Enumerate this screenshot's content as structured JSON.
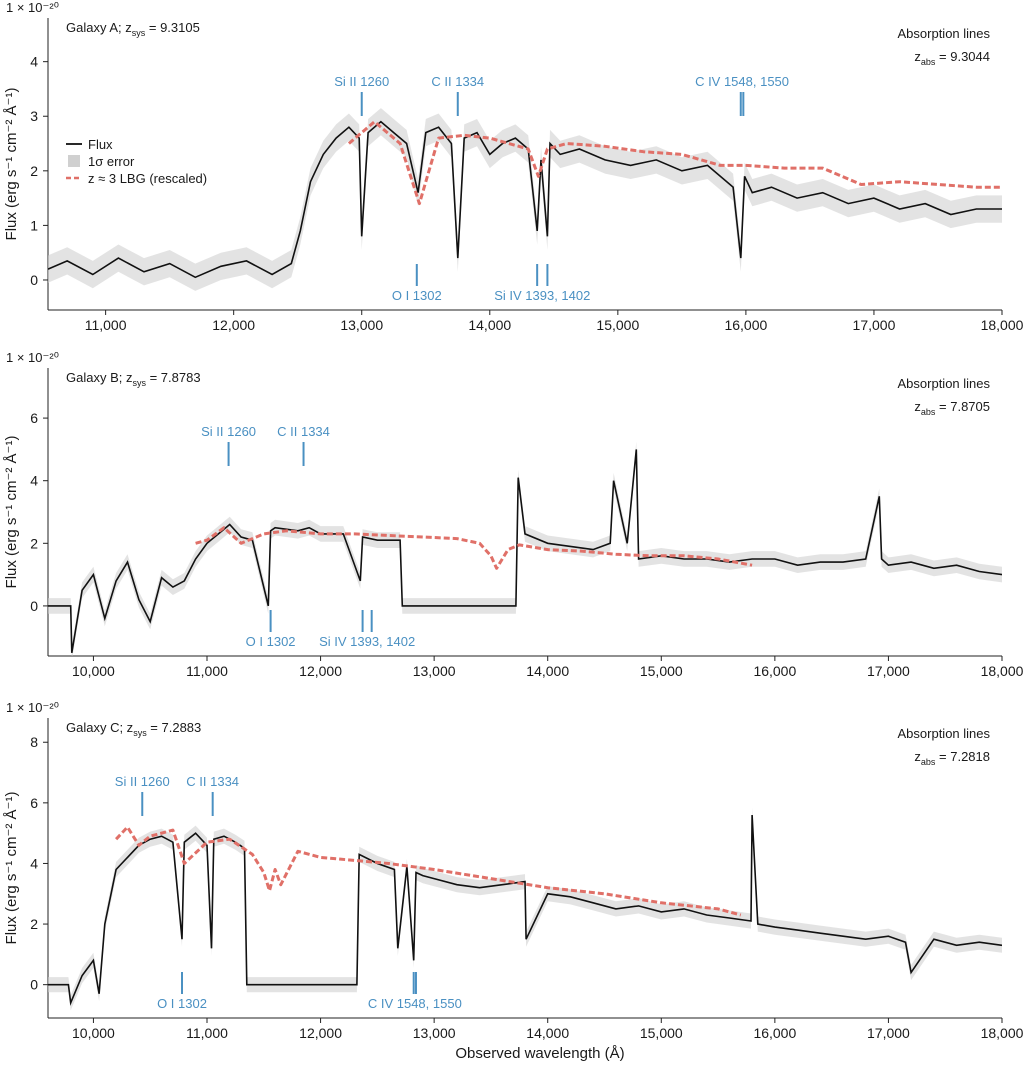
{
  "x_axis_label": "Observed wavelength (Å)",
  "y_axis_label": "Flux (erg s⁻¹ cm⁻² Å⁻¹)",
  "scale_label": "1 × 10⁻²⁰",
  "legend": {
    "flux": "Flux",
    "error": "1σ error",
    "template": "z ≈ 3 LBG (rescaled)"
  },
  "colors": {
    "flux": "#111111",
    "error": "#d0d0d0",
    "template": "#e07068",
    "lines": "#4a90c2"
  },
  "chart_data": [
    {
      "type": "line",
      "galaxy_label": "Galaxy A; z",
      "zsys_sub": "sys",
      "zsys_value": "= 9.3105",
      "abs_title": "Absorption lines",
      "zabs_sub": "abs",
      "zabs_value": "= 9.3044",
      "xlim": [
        10550,
        18000
      ],
      "ylim": [
        -0.55,
        4.8
      ],
      "x_ticks": [
        11000,
        12000,
        13000,
        14000,
        15000,
        16000,
        17000,
        18000
      ],
      "x_tick_labels": [
        "11,000",
        "12,000",
        "13,000",
        "14,000",
        "15,000",
        "16,000",
        "17,000",
        "18,000"
      ],
      "y_ticks": [
        0,
        1,
        2,
        3,
        4
      ],
      "y_tick_labels": [
        "0",
        "1",
        "2",
        "3",
        "4"
      ],
      "legend_shown": true,
      "series": [
        {
          "name": "Flux",
          "style": "solid",
          "x": [
            10550,
            10700,
            10900,
            11100,
            11300,
            11500,
            11700,
            11900,
            12100,
            12300,
            12450,
            12520,
            12600,
            12700,
            12800,
            12900,
            12980,
            13000,
            13050,
            13150,
            13250,
            13350,
            13420,
            13440,
            13500,
            13600,
            13700,
            13750,
            13800,
            13900,
            14000,
            14100,
            14200,
            14300,
            14370,
            14400,
            14450,
            14470,
            14550,
            14700,
            14900,
            15100,
            15300,
            15500,
            15700,
            15900,
            15960,
            15990,
            16050,
            16200,
            16400,
            16600,
            16800,
            17000,
            17200,
            17400,
            17600,
            17800,
            18000
          ],
          "y": [
            0.2,
            0.35,
            0.1,
            0.4,
            0.15,
            0.3,
            0.05,
            0.25,
            0.35,
            0.1,
            0.3,
            0.9,
            1.8,
            2.3,
            2.6,
            2.8,
            2.6,
            0.8,
            2.7,
            2.9,
            2.7,
            2.5,
            1.8,
            1.6,
            2.7,
            2.8,
            2.5,
            0.4,
            2.6,
            2.7,
            2.3,
            2.5,
            2.6,
            2.4,
            0.9,
            2.2,
            0.8,
            2.5,
            2.3,
            2.4,
            2.2,
            2.1,
            2.2,
            2.0,
            2.1,
            1.7,
            0.4,
            1.9,
            1.6,
            1.7,
            1.5,
            1.6,
            1.4,
            1.5,
            1.3,
            1.4,
            1.2,
            1.3,
            1.3
          ]
        },
        {
          "name": "z ≈ 3 LBG (rescaled)",
          "style": "dashed",
          "x": [
            12900,
            13100,
            13300,
            13450,
            13600,
            13800,
            14000,
            14300,
            14380,
            14450,
            14600,
            14900,
            15200,
            15500,
            15800,
            16000,
            16300,
            16600,
            16900,
            17200,
            17500,
            17800,
            18000
          ],
          "y": [
            2.5,
            2.9,
            2.5,
            1.4,
            2.6,
            2.65,
            2.6,
            2.4,
            1.9,
            2.4,
            2.5,
            2.45,
            2.35,
            2.3,
            2.1,
            2.1,
            2.05,
            2.05,
            1.75,
            1.8,
            1.75,
            1.7,
            1.7
          ]
        }
      ],
      "absorption_lines": [
        {
          "name": "Si II 1260",
          "x": [
            13000
          ],
          "side": "top"
        },
        {
          "name": "C II 1334",
          "x": [
            13750
          ],
          "side": "top"
        },
        {
          "name": "C IV 1548, 1550",
          "x": [
            15960,
            15980
          ],
          "side": "top"
        },
        {
          "name": "O I 1302",
          "x": [
            13430
          ],
          "side": "bottom"
        },
        {
          "name": "Si IV 1393, 1402",
          "x": [
            14370,
            14450
          ],
          "side": "bottom"
        }
      ]
    },
    {
      "type": "line",
      "galaxy_label": "Galaxy B; z",
      "zsys_sub": "sys",
      "zsys_value": "= 7.8783",
      "abs_title": "Absorption lines",
      "zabs_sub": "abs",
      "zabs_value": "= 7.8705",
      "xlim": [
        9600,
        18000
      ],
      "ylim": [
        -1.6,
        7.6
      ],
      "x_ticks": [
        10000,
        11000,
        12000,
        13000,
        14000,
        15000,
        16000,
        17000,
        18000
      ],
      "x_tick_labels": [
        "10,000",
        "11,000",
        "12,000",
        "13,000",
        "14,000",
        "15,000",
        "16,000",
        "17,000",
        "18,000"
      ],
      "y_ticks": [
        0,
        2,
        4,
        6
      ],
      "y_tick_labels": [
        "0",
        "2",
        "4",
        "6"
      ],
      "legend_shown": false,
      "series": [
        {
          "name": "Flux",
          "style": "solid",
          "x": [
            9600,
            9800,
            9810,
            9900,
            10000,
            10100,
            10200,
            10300,
            10400,
            10500,
            10600,
            10700,
            10800,
            10900,
            11000,
            11100,
            11200,
            11300,
            11400,
            11540,
            11560,
            11600,
            11800,
            11900,
            12000,
            12200,
            12350,
            12370,
            12500,
            12700,
            12720,
            13720,
            13740,
            13800,
            14000,
            14200,
            14400,
            14550,
            14580,
            14700,
            14780,
            14800,
            15000,
            15200,
            15400,
            15600,
            15800,
            16000,
            16200,
            16400,
            16600,
            16800,
            16920,
            16940,
            17000,
            17200,
            17400,
            17600,
            17800,
            18000
          ],
          "y": [
            0,
            0,
            -1.5,
            0.5,
            1.0,
            -0.4,
            0.8,
            1.4,
            0.2,
            -0.5,
            0.9,
            0.6,
            0.8,
            1.5,
            2.0,
            2.3,
            2.6,
            2.2,
            2.1,
            0.0,
            2.4,
            2.5,
            2.4,
            2.5,
            2.3,
            2.3,
            0.8,
            2.2,
            2.1,
            2.1,
            0.0,
            0.0,
            4.1,
            2.3,
            2.0,
            1.9,
            1.8,
            2.0,
            4.0,
            2.0,
            5.0,
            1.5,
            1.6,
            1.5,
            1.5,
            1.4,
            1.5,
            1.5,
            1.3,
            1.4,
            1.4,
            1.5,
            3.5,
            1.5,
            1.3,
            1.4,
            1.2,
            1.3,
            1.1,
            1.0
          ]
        },
        {
          "name": "z ≈ 3 LBG (rescaled)",
          "style": "dashed",
          "x": [
            10900,
            11000,
            11150,
            11300,
            11500,
            11700,
            12000,
            12300,
            12600,
            12900,
            13200,
            13400,
            13500,
            13550,
            13650,
            13750,
            14000,
            14300,
            14600,
            14900,
            15200,
            15500,
            15800
          ],
          "y": [
            2.0,
            2.1,
            2.5,
            2.0,
            2.3,
            2.4,
            2.3,
            2.3,
            2.25,
            2.2,
            2.15,
            2.0,
            1.6,
            1.2,
            1.8,
            1.95,
            1.8,
            1.75,
            1.65,
            1.6,
            1.6,
            1.5,
            1.3
          ]
        }
      ],
      "absorption_lines": [
        {
          "name": "Si II 1260",
          "x": [
            11190
          ],
          "side": "top"
        },
        {
          "name": "C II 1334",
          "x": [
            11850
          ],
          "side": "top"
        },
        {
          "name": "O I 1302",
          "x": [
            11560
          ],
          "side": "bottom"
        },
        {
          "name": "Si IV 1393, 1402",
          "x": [
            12370,
            12450
          ],
          "side": "bottom"
        }
      ]
    },
    {
      "type": "line",
      "galaxy_label": "Galaxy C; z",
      "zsys_sub": "sys",
      "zsys_value": "= 7.2883",
      "abs_title": "Absorption lines",
      "zabs_sub": "abs",
      "zabs_value": "= 7.2818",
      "xlim": [
        9600,
        18000
      ],
      "ylim": [
        -1.1,
        8.8
      ],
      "x_ticks": [
        10000,
        11000,
        12000,
        13000,
        14000,
        15000,
        16000,
        17000,
        18000
      ],
      "x_tick_labels": [
        "10,000",
        "11,000",
        "12,000",
        "13,000",
        "14,000",
        "15,000",
        "16,000",
        "17,000",
        "18,000"
      ],
      "y_ticks": [
        0,
        2,
        4,
        6,
        8
      ],
      "y_tick_labels": [
        "0",
        "2",
        "4",
        "6",
        "8"
      ],
      "legend_shown": false,
      "series": [
        {
          "name": "Flux",
          "style": "solid",
          "x": [
            9600,
            9780,
            9800,
            9900,
            10000,
            10050,
            10100,
            10200,
            10300,
            10400,
            10500,
            10600,
            10700,
            10780,
            10800,
            10900,
            11000,
            11040,
            11060,
            11150,
            11250,
            11330,
            11350,
            12320,
            12340,
            12500,
            12650,
            12680,
            12760,
            12820,
            12840,
            12900,
            13000,
            13200,
            13400,
            13600,
            13800,
            13810,
            14000,
            14200,
            14400,
            14600,
            14800,
            15000,
            15200,
            15400,
            15600,
            15790,
            15800,
            15850,
            16000,
            16200,
            16400,
            16600,
            16800,
            17000,
            17150,
            17200,
            17400,
            17600,
            17800,
            18000
          ],
          "y": [
            0,
            0,
            -0.6,
            0.3,
            0.8,
            -0.3,
            2.0,
            3.8,
            4.2,
            4.6,
            4.8,
            4.9,
            4.7,
            1.5,
            4.7,
            5.0,
            4.6,
            1.2,
            4.8,
            4.9,
            4.7,
            4.5,
            0,
            0,
            4.3,
            4.0,
            3.8,
            1.2,
            3.9,
            0.8,
            3.7,
            3.6,
            3.5,
            3.3,
            3.2,
            3.3,
            3.4,
            1.5,
            3.0,
            2.9,
            2.7,
            2.5,
            2.6,
            2.4,
            2.5,
            2.3,
            2.2,
            2.1,
            5.6,
            2.0,
            1.9,
            1.8,
            1.7,
            1.6,
            1.5,
            1.6,
            1.4,
            0.4,
            1.5,
            1.3,
            1.4,
            1.3
          ]
        },
        {
          "name": "z ≈ 3 LBG (rescaled)",
          "style": "dashed",
          "x": [
            10200,
            10300,
            10400,
            10500,
            10700,
            10800,
            11000,
            11200,
            11400,
            11500,
            11550,
            11600,
            11650,
            11800,
            12000,
            12300,
            12600,
            12800,
            13000,
            13500,
            14000,
            14500,
            15000,
            15500,
            15700
          ],
          "y": [
            4.8,
            5.2,
            4.6,
            4.9,
            5.1,
            4.0,
            4.7,
            4.8,
            4.3,
            3.7,
            3.1,
            3.8,
            3.3,
            4.4,
            4.2,
            4.1,
            4.0,
            3.9,
            3.8,
            3.5,
            3.2,
            3.0,
            2.7,
            2.5,
            2.3
          ]
        }
      ],
      "absorption_lines": [
        {
          "name": "Si II 1260",
          "x": [
            10430
          ],
          "side": "top"
        },
        {
          "name": "C II 1334",
          "x": [
            11050
          ],
          "side": "top"
        },
        {
          "name": "O I 1302",
          "x": [
            10780
          ],
          "side": "bottom"
        },
        {
          "name": "C IV 1548, 1550",
          "x": [
            12820,
            12840
          ],
          "side": "bottom"
        }
      ]
    }
  ]
}
